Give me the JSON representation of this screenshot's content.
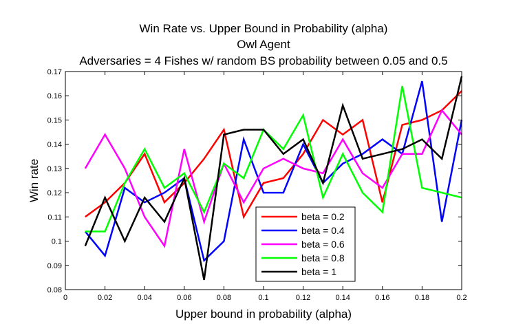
{
  "chart_data": {
    "type": "line",
    "title": [
      "Win Rate vs. Upper Bound in Probability (alpha)",
      "Owl Agent",
      "Adversaries = 4 Fishes w/ random BS probability between 0.05 and 0.5"
    ],
    "xlabel": "Upper bound in probability (alpha)",
    "ylabel": "Win rate",
    "xlim": [
      0,
      0.2
    ],
    "ylim": [
      0.08,
      0.17
    ],
    "xticks": [
      0,
      0.02,
      0.04,
      0.06,
      0.08,
      0.1,
      0.12,
      0.14,
      0.16,
      0.18,
      0.2
    ],
    "xtick_labels": [
      "0",
      "0.02",
      "0.04",
      "0.06",
      "0.08",
      "0.1",
      "0.12",
      "0.14",
      "0.16",
      "0.18",
      "0.2"
    ],
    "yticks": [
      0.08,
      0.09,
      0.1,
      0.11,
      0.12,
      0.13,
      0.14,
      0.15,
      0.16,
      0.17
    ],
    "ytick_labels": [
      "0.08",
      "0.09",
      "0.1",
      "0.11",
      "0.12",
      "0.13",
      "0.14",
      "0.15",
      "0.16",
      "0.17"
    ],
    "grid": false,
    "legend_position": "bottom-right",
    "x": [
      0.01,
      0.02,
      0.03,
      0.04,
      0.05,
      0.06,
      0.07,
      0.08,
      0.09,
      0.1,
      0.11,
      0.12,
      0.13,
      0.14,
      0.15,
      0.16,
      0.17,
      0.18,
      0.19,
      0.2
    ],
    "series": [
      {
        "name": "beta = 0.2",
        "color": "#ff0000",
        "values": [
          0.11,
          0.116,
          0.124,
          0.136,
          0.116,
          0.124,
          0.134,
          0.146,
          0.11,
          0.124,
          0.126,
          0.136,
          0.15,
          0.144,
          0.15,
          0.116,
          0.148,
          0.15,
          0.154,
          0.162
        ]
      },
      {
        "name": "beta = 0.4",
        "color": "#0000ff",
        "values": [
          0.104,
          0.094,
          0.122,
          0.116,
          0.12,
          0.126,
          0.092,
          0.1,
          0.142,
          0.12,
          0.12,
          0.14,
          0.124,
          0.132,
          0.136,
          0.142,
          0.136,
          0.166,
          0.108,
          0.15
        ]
      },
      {
        "name": "beta = 0.6",
        "color": "#ff00ff",
        "values": [
          0.13,
          0.144,
          0.13,
          0.11,
          0.098,
          0.138,
          0.108,
          0.132,
          0.116,
          0.13,
          0.134,
          0.13,
          0.128,
          0.142,
          0.128,
          0.122,
          0.136,
          0.136,
          0.154,
          0.144
        ]
      },
      {
        "name": "beta = 0.8",
        "color": "#00ff00",
        "values": [
          0.104,
          0.104,
          0.124,
          0.138,
          0.122,
          0.128,
          0.112,
          0.132,
          0.126,
          0.146,
          0.138,
          0.152,
          0.118,
          0.136,
          0.12,
          0.112,
          0.164,
          0.122,
          0.12,
          0.118
        ]
      },
      {
        "name": "beta = 1",
        "color": "#000000",
        "values": [
          0.098,
          0.118,
          0.1,
          0.118,
          0.108,
          0.126,
          0.084,
          0.144,
          0.146,
          0.146,
          0.136,
          0.142,
          0.124,
          0.156,
          0.134,
          0.136,
          0.138,
          0.142,
          0.134,
          0.168
        ]
      }
    ]
  }
}
